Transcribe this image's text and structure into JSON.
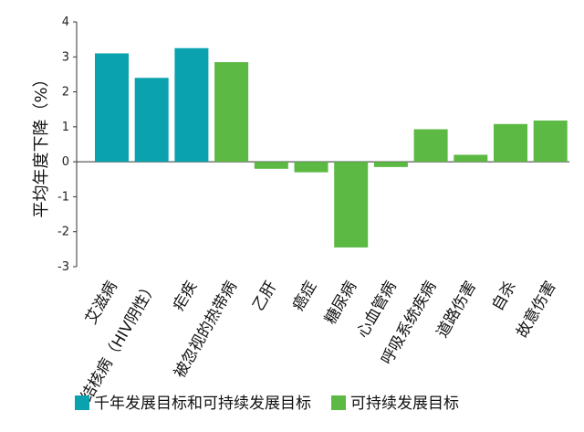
{
  "chart_data": {
    "type": "bar",
    "title": "",
    "xlabel": "",
    "ylabel": "平均年度下降（%）",
    "ylim": [
      -3,
      4
    ],
    "yticks": [
      4,
      3,
      2,
      1,
      0,
      -1,
      -2,
      -3
    ],
    "grid": false,
    "legend_position": "bottom",
    "categories": [
      "艾滋病",
      "结核病（HIV阴性）",
      "疟疾",
      "被忽视的热带病",
      "乙肝",
      "癌症",
      "糖尿病",
      "心血管病",
      "呼吸系统疾病",
      "道路伤害",
      "自杀",
      "故意伤害"
    ],
    "values": [
      3.1,
      2.4,
      3.25,
      2.85,
      -0.2,
      -0.3,
      -2.45,
      -0.15,
      0.93,
      0.2,
      1.08,
      1.18
    ],
    "bar_groups": [
      "mdg",
      "mdg",
      "mdg",
      "sdg",
      "sdg",
      "sdg",
      "sdg",
      "sdg",
      "sdg",
      "sdg",
      "sdg",
      "sdg"
    ],
    "series": [
      {
        "key": "mdg",
        "name": "千年发展目标和可持续发展目标",
        "color": "#0AA2AE"
      },
      {
        "key": "sdg",
        "name": "可持续发展目标",
        "color": "#5BB944"
      }
    ]
  }
}
